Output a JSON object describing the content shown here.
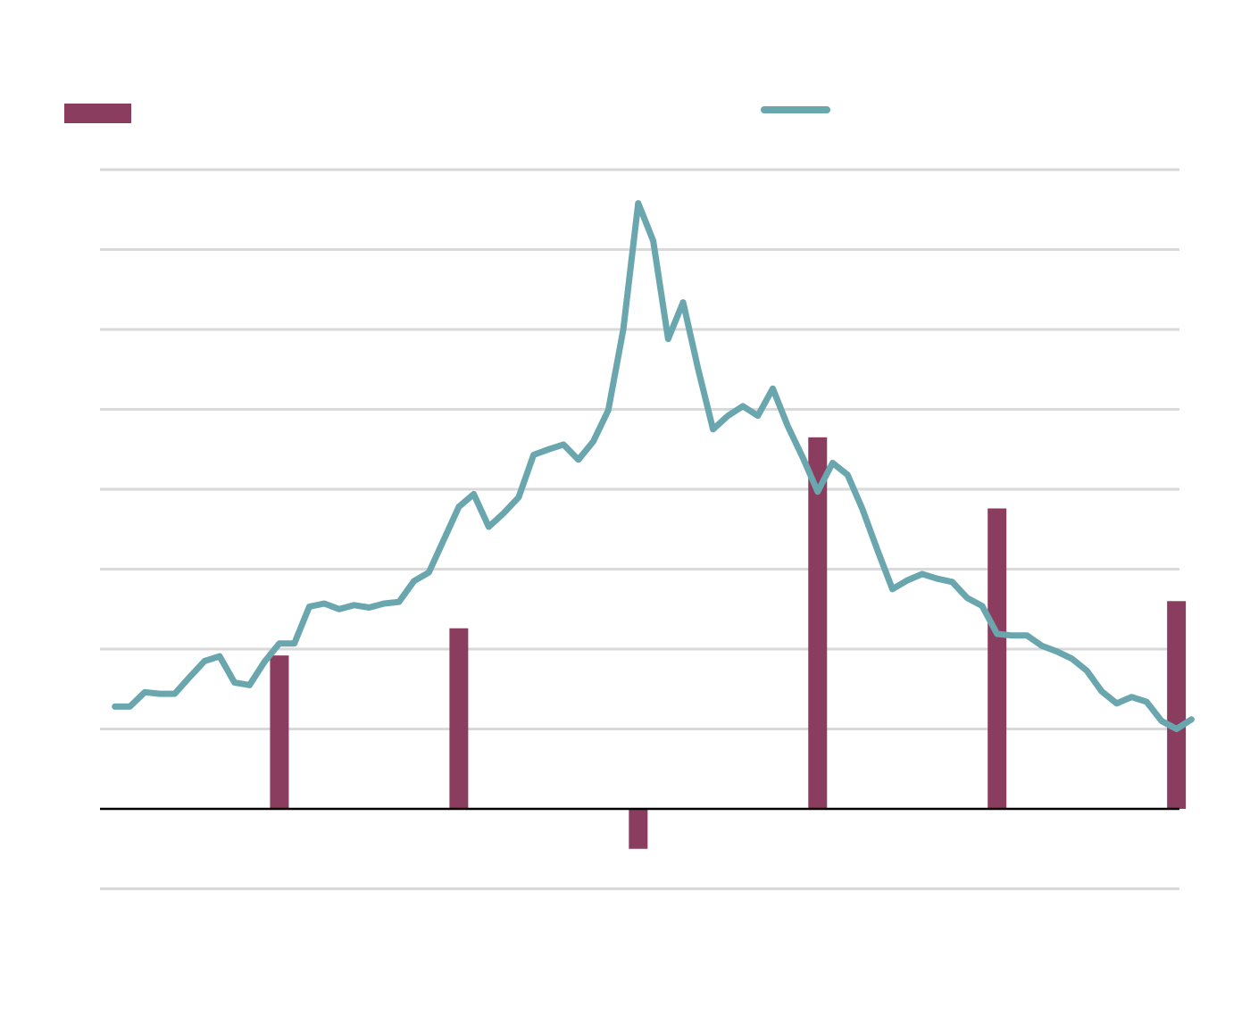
{
  "chart_data": {
    "type": "bar+line",
    "title": "",
    "xlabel": "",
    "ylabel": "",
    "ylim": [
      -1,
      7.8
    ],
    "grid": true,
    "legend_placement": "top",
    "bar_series": {
      "color": "#8b3d5f",
      "points": [
        {
          "x": 11.5,
          "value": 1.92
        },
        {
          "x": 23.5,
          "value": 2.26
        },
        {
          "x": 35.5,
          "value": -0.5
        },
        {
          "x": 47.5,
          "value": 4.65
        },
        {
          "x": 59.5,
          "value": 3.76
        },
        {
          "x": 71.5,
          "value": 2.6
        }
      ]
    },
    "line_series": {
      "color": "#6aa6ae",
      "x_start": 0.5,
      "x_step": 1,
      "values": [
        1.28,
        1.28,
        1.46,
        1.44,
        1.44,
        1.65,
        1.85,
        1.91,
        1.58,
        1.55,
        1.84,
        2.07,
        2.07,
        2.53,
        2.57,
        2.5,
        2.55,
        2.52,
        2.57,
        2.59,
        2.85,
        2.96,
        3.37,
        3.78,
        3.94,
        3.53,
        3.7,
        3.9,
        4.43,
        4.5,
        4.56,
        4.37,
        4.6,
        4.99,
        6.0,
        7.58,
        7.11,
        5.88,
        6.34,
        5.51,
        4.75,
        4.92,
        5.04,
        4.92,
        5.26,
        4.79,
        4.4,
        3.97,
        4.33,
        4.18,
        3.75,
        3.24,
        2.75,
        2.86,
        2.94,
        2.88,
        2.84,
        2.64,
        2.54,
        2.19,
        2.17,
        2.17,
        2.04,
        1.97,
        1.88,
        1.73,
        1.47,
        1.32,
        1.4,
        1.34,
        1.1,
        1.0,
        1.12
      ]
    },
    "x_range": [
      -0.5,
      71.7
    ]
  }
}
